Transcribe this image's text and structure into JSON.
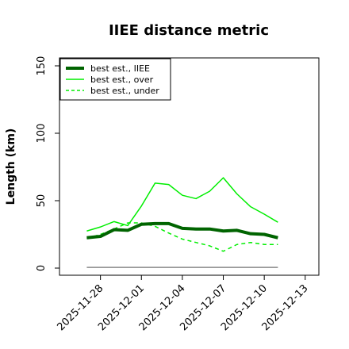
{
  "chart_data": {
    "type": "line",
    "title": "IIEE distance metric",
    "ylabel": "Length (km)",
    "xlabel": "",
    "ylim": [
      0,
      155
    ],
    "xlim": [
      "2025-11-25",
      "2025-12-14"
    ],
    "yticks": [
      0,
      50,
      100,
      150
    ],
    "xticks": [
      "2025-11-28",
      "2025-12-01",
      "2025-12-04",
      "2025-12-07",
      "2025-12-10",
      "2025-12-13"
    ],
    "grid": false,
    "legend_position": "top-left",
    "x": [
      "2025-11-27",
      "2025-11-28",
      "2025-11-29",
      "2025-11-30",
      "2025-12-01",
      "2025-12-02",
      "2025-12-03",
      "2025-12-04",
      "2025-12-05",
      "2025-12-06",
      "2025-12-07",
      "2025-12-08",
      "2025-12-09",
      "2025-12-10",
      "2025-12-11"
    ],
    "series": [
      {
        "name": "best est., IIEE",
        "color": "#006400",
        "style": "solid-thick",
        "values": [
          22.5,
          23.5,
          28.5,
          28,
          32.5,
          33,
          33,
          29.5,
          29,
          29,
          27.5,
          28,
          25.5,
          25,
          22.5
        ]
      },
      {
        "name": "best est., over",
        "color": "#00ee00",
        "style": "solid",
        "values": [
          27.5,
          30.5,
          34.5,
          31.5,
          46,
          63,
          62,
          54,
          51.5,
          57,
          67,
          55,
          45.5,
          40,
          34
        ]
      },
      {
        "name": "best est., under",
        "color": "#00ee00",
        "style": "dashed",
        "values": [
          22,
          25,
          29,
          33.5,
          33.5,
          31,
          26,
          21.5,
          19,
          16.5,
          12.5,
          17.5,
          19,
          17.5,
          17.5
        ]
      },
      {
        "name": "",
        "color": "#888888",
        "style": "solid-thin",
        "values": [
          0.5,
          0.5,
          0.5,
          0.5,
          0.5,
          0.5,
          0.5,
          0.5,
          0.5,
          0.5,
          0.5,
          0.5,
          0.5,
          0.5,
          0.5
        ]
      }
    ]
  }
}
